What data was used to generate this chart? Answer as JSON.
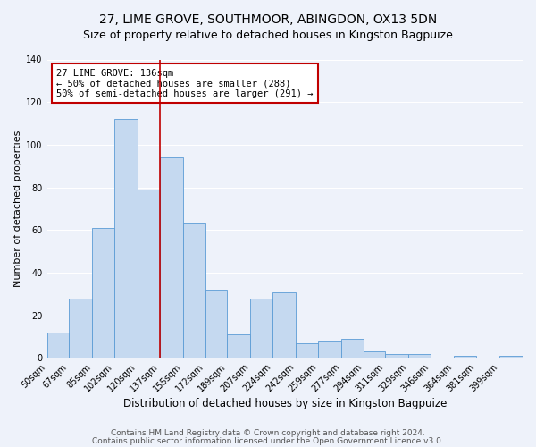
{
  "title1": "27, LIME GROVE, SOUTHMOOR, ABINGDON, OX13 5DN",
  "title2": "Size of property relative to detached houses in Kingston Bagpuize",
  "xlabel": "Distribution of detached houses by size in Kingston Bagpuize",
  "ylabel": "Number of detached properties",
  "bin_labels": [
    "50sqm",
    "67sqm",
    "85sqm",
    "102sqm",
    "120sqm",
    "137sqm",
    "155sqm",
    "172sqm",
    "189sqm",
    "207sqm",
    "224sqm",
    "242sqm",
    "259sqm",
    "277sqm",
    "294sqm",
    "311sqm",
    "329sqm",
    "346sqm",
    "364sqm",
    "381sqm",
    "399sqm"
  ],
  "bin_edges": [
    50,
    67,
    85,
    102,
    120,
    137,
    155,
    172,
    189,
    207,
    224,
    242,
    259,
    277,
    294,
    311,
    329,
    346,
    364,
    381,
    399
  ],
  "values": [
    12,
    28,
    61,
    112,
    79,
    94,
    63,
    32,
    11,
    28,
    31,
    7,
    8,
    9,
    3,
    2,
    2,
    0,
    1,
    0,
    1
  ],
  "bar_color": "#c5d9f0",
  "bar_edge_color": "#5b9bd5",
  "vline_x": 137,
  "vline_color": "#c00000",
  "annotation_text": "27 LIME GROVE: 136sqm\n← 50% of detached houses are smaller (288)\n50% of semi-detached houses are larger (291) →",
  "annotation_box_color": "#ffffff",
  "annotation_box_edge_color": "#c00000",
  "ylim": [
    0,
    140
  ],
  "yticks": [
    0,
    20,
    40,
    60,
    80,
    100,
    120,
    140
  ],
  "footer1": "Contains HM Land Registry data © Crown copyright and database right 2024.",
  "footer2": "Contains public sector information licensed under the Open Government Licence v3.0.",
  "background_color": "#eef2fa",
  "title1_fontsize": 10,
  "title2_fontsize": 9,
  "xlabel_fontsize": 8.5,
  "ylabel_fontsize": 8,
  "tick_fontsize": 7,
  "annotation_fontsize": 7.5,
  "footer_fontsize": 6.5
}
